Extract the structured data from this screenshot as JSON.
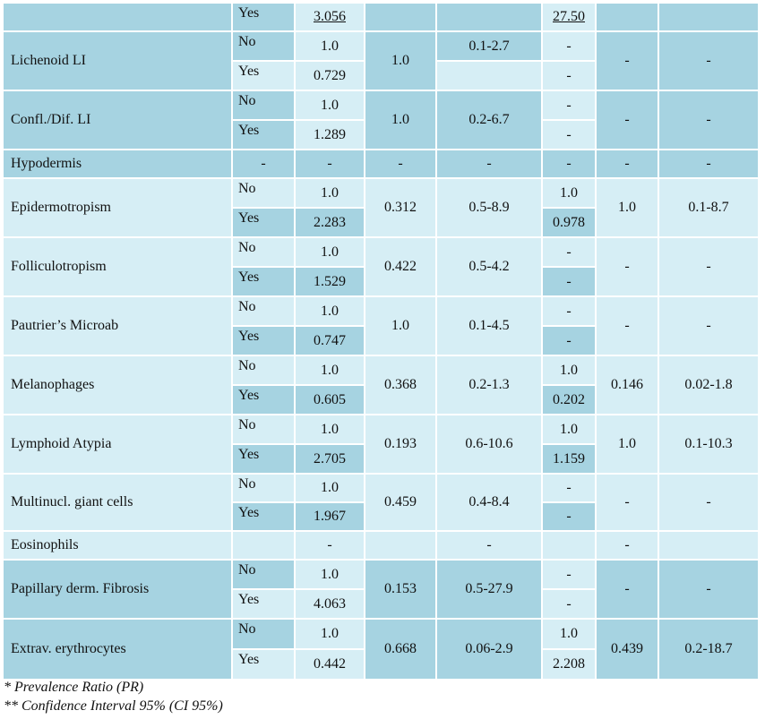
{
  "colors": {
    "dark": "#a6d3e1",
    "light": "#d6eef5",
    "border": "#ffffff"
  },
  "rows": [
    {
      "var": "",
      "cells": [
        {
          "yn": "Yes",
          "pr": "3.056",
          "p1": "",
          "ci": "",
          "apr": "27.50",
          "p2": "",
          "ci2": ""
        }
      ],
      "underline": true
    },
    {
      "var": "Lichenoid LI",
      "cells": [
        {
          "yn": "No",
          "pr": "1.0"
        },
        {
          "yn": "Yes",
          "pr": "0.729"
        }
      ],
      "p1": "1.0",
      "ci": "0.1-2.7",
      "apr": [
        "-",
        "-"
      ],
      "p2": "-",
      "ci2": "-"
    },
    {
      "var": "Confl./Dif. LI",
      "cells": [
        {
          "yn": "No",
          "pr": "1.0"
        },
        {
          "yn": "Yes",
          "pr": "1.289"
        }
      ],
      "p1": "1.0",
      "ci": "0.2-6.7",
      "apr": [
        "-",
        "-"
      ],
      "p2": "-",
      "ci2": "-"
    },
    {
      "var": "Hypodermis",
      "single": true,
      "yn": "-",
      "pr": "-",
      "p1": "-",
      "ci": "-",
      "apr": "-",
      "p2": "-",
      "ci2": "-"
    },
    {
      "var": "Epidermotropism",
      "cells": [
        {
          "yn": "No",
          "pr": "1.0"
        },
        {
          "yn": "Yes",
          "pr": "2.283"
        }
      ],
      "p1": "0.312",
      "ci": "0.5-8.9",
      "apr": [
        "1.0",
        "0.978"
      ],
      "p2": "1.0",
      "ci2": "0.1-8.7"
    },
    {
      "var": "Folliculotropism",
      "cells": [
        {
          "yn": "No",
          "pr": "1.0"
        },
        {
          "yn": "Yes",
          "pr": "1.529"
        }
      ],
      "p1": "0.422",
      "ci": "0.5-4.2",
      "apr": [
        "-",
        "-"
      ],
      "p2": "-",
      "ci2": "-"
    },
    {
      "var": "Pautrier’s Microab",
      "cells": [
        {
          "yn": "No",
          "pr": "1.0"
        },
        {
          "yn": "Yes",
          "pr": "0.747"
        }
      ],
      "p1": "1.0",
      "ci": "0.1-4.5",
      "apr": [
        "-",
        "-"
      ],
      "p2": "-",
      "ci2": "-"
    },
    {
      "var": "Melanophages",
      "cells": [
        {
          "yn": "No",
          "pr": "1.0"
        },
        {
          "yn": "Yes",
          "pr": "0.605"
        }
      ],
      "p1": "0.368",
      "ci": "0.2-1.3",
      "apr": [
        "1.0",
        "0.202"
      ],
      "p2": "0.146",
      "ci2": "0.02-1.8"
    },
    {
      "var": "Lymphoid Atypia",
      "cells": [
        {
          "yn": "No",
          "pr": "1.0"
        },
        {
          "yn": "Yes",
          "pr": "2.705"
        }
      ],
      "p1": "0.193",
      "ci": "0.6-10.6",
      "apr": [
        "1.0",
        "1.159"
      ],
      "p2": "1.0",
      "ci2": "0.1-10.3"
    },
    {
      "var": "Multinucl. giant cells",
      "cells": [
        {
          "yn": "No",
          "pr": "1.0"
        },
        {
          "yn": "Yes",
          "pr": "1.967"
        }
      ],
      "p1": "0.459",
      "ci": "0.4-8.4",
      "apr": [
        "-",
        "-"
      ],
      "p2": "-",
      "ci2": "-"
    },
    {
      "var": "Eosinophils",
      "single": true,
      "yn": "",
      "pr": "-",
      "p1": "",
      "ci": "-",
      "apr": "",
      "p2": "-",
      "ci2": ""
    },
    {
      "var": "Papillary derm. Fibrosis",
      "cells": [
        {
          "yn": "No",
          "pr": "1.0"
        },
        {
          "yn": "Yes",
          "pr": "4.063"
        }
      ],
      "p1": "0.153",
      "ci": "0.5-27.9",
      "apr": [
        "-",
        "-"
      ],
      "p2": "-",
      "ci2": "-"
    },
    {
      "var": "Extrav. erythrocytes",
      "cells": [
        {
          "yn": "No",
          "pr": "1.0"
        },
        {
          "yn": "Yes",
          "pr": "0.442"
        }
      ],
      "p1": "0.668",
      "ci": "0.06-2.9",
      "apr": [
        "1.0",
        "2.208"
      ],
      "p2": "0.439",
      "ci2": "0.2-18.7"
    }
  ],
  "footnotes": [
    "* Prevalence Ratio (PR)",
    "** Confidence Interval 95% (CI 95%)"
  ]
}
